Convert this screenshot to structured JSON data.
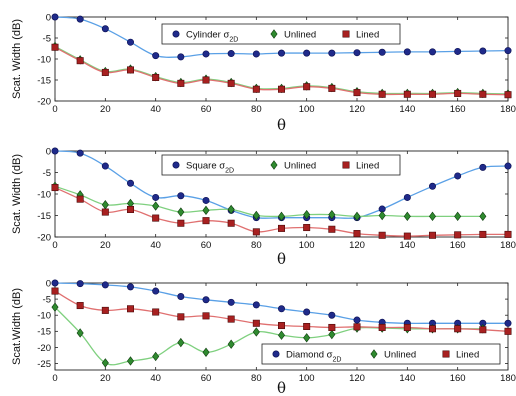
{
  "chart_data": [
    {
      "type": "line",
      "xlabel": "θ",
      "ylabel": "Scat. Width (dB)",
      "xlim": [
        0,
        180
      ],
      "ylim": [
        -20,
        0
      ],
      "xticks": [
        0,
        20,
        40,
        60,
        80,
        100,
        120,
        140,
        160,
        180
      ],
      "yticks": [
        0,
        -5,
        -10,
        -15,
        -20
      ],
      "legend_position": "top-center",
      "series": [
        {
          "name": "Cylinder σ2D",
          "legend_main": "Cylinder σ",
          "legend_sub": "2D",
          "color": "#1f2a8a",
          "line_color": "#5aa0e6",
          "marker": "circle",
          "x": [
            0,
            10,
            20,
            30,
            40,
            50,
            60,
            70,
            80,
            90,
            100,
            110,
            120,
            130,
            140,
            150,
            160,
            170,
            180
          ],
          "y": [
            0,
            -0.5,
            -2.8,
            -6.0,
            -9.2,
            -9.5,
            -8.8,
            -8.7,
            -8.8,
            -8.6,
            -8.6,
            -8.6,
            -8.5,
            -8.4,
            -8.3,
            -8.3,
            -8.2,
            -8.1,
            -8.0
          ]
        },
        {
          "name": "Unlined",
          "legend_main": "Unlined",
          "legend_sub": "",
          "color": "#2f8a2f",
          "line_color": "#7fd07f",
          "marker": "diamond",
          "x": [
            0,
            10,
            20,
            30,
            40,
            50,
            60,
            70,
            80,
            90,
            100,
            110,
            120,
            130,
            140,
            150,
            160,
            170,
            180
          ],
          "y": [
            -7.0,
            -10.2,
            -13.0,
            -12.4,
            -14.2,
            -15.6,
            -14.8,
            -15.6,
            -17.0,
            -17.0,
            -16.4,
            -16.8,
            -17.8,
            -18.2,
            -18.2,
            -18.2,
            -18.0,
            -18.2,
            -18.3
          ]
        },
        {
          "name": "Lined",
          "legend_main": "Lined",
          "legend_sub": "",
          "color": "#a82020",
          "line_color": "#e07070",
          "marker": "square",
          "x": [
            0,
            10,
            20,
            30,
            40,
            50,
            60,
            70,
            80,
            90,
            100,
            110,
            120,
            130,
            140,
            150,
            160,
            170,
            180
          ],
          "y": [
            -7.2,
            -10.4,
            -13.2,
            -12.6,
            -14.4,
            -15.8,
            -15.0,
            -15.8,
            -17.2,
            -17.2,
            -16.6,
            -17.0,
            -18.0,
            -18.4,
            -18.4,
            -18.4,
            -18.2,
            -18.4,
            -18.5
          ]
        }
      ]
    },
    {
      "type": "line",
      "xlabel": "θ",
      "ylabel": "Scat. Width (dB)",
      "xlim": [
        0,
        180
      ],
      "ylim": [
        -20,
        0
      ],
      "xticks": [
        0,
        20,
        40,
        60,
        80,
        100,
        120,
        140,
        160,
        180
      ],
      "yticks": [
        0,
        -5,
        -10,
        -15,
        -20
      ],
      "legend_position": "top-center",
      "series": [
        {
          "name": "Square σ2D",
          "legend_main": "Square σ",
          "legend_sub": "2D",
          "color": "#1f2a8a",
          "line_color": "#5aa0e6",
          "marker": "circle",
          "x": [
            0,
            10,
            20,
            30,
            40,
            50,
            60,
            70,
            80,
            90,
            100,
            110,
            120,
            130,
            140,
            150,
            160,
            170,
            180
          ],
          "y": [
            0,
            -0.5,
            -3.5,
            -7.5,
            -10.8,
            -10.4,
            -11.5,
            -13.8,
            -15.5,
            -15.5,
            -15.5,
            -15.5,
            -15.5,
            -13.5,
            -10.8,
            -8.2,
            -5.8,
            -3.8,
            -3.5
          ]
        },
        {
          "name": "Unlined",
          "legend_main": "Unlined",
          "legend_sub": "",
          "color": "#2f8a2f",
          "line_color": "#7fd07f",
          "marker": "diamond",
          "x": [
            0,
            10,
            20,
            30,
            40,
            50,
            60,
            70,
            80,
            90,
            100,
            110,
            120,
            130,
            140,
            150,
            160,
            170
          ],
          "y": [
            -8.2,
            -10.2,
            -12.5,
            -12.2,
            -12.8,
            -14.2,
            -13.8,
            -13.6,
            -15.0,
            -15.2,
            -14.8,
            -14.8,
            -15.2,
            -15.0,
            -15.2,
            -15.2,
            -15.2,
            -15.2
          ]
        },
        {
          "name": "Lined",
          "legend_main": "Lined",
          "legend_sub": "",
          "color": "#a82020",
          "line_color": "#e07070",
          "marker": "square",
          "x": [
            0,
            10,
            20,
            30,
            40,
            50,
            60,
            70,
            80,
            90,
            100,
            110,
            120,
            130,
            140,
            150,
            160,
            170,
            180
          ],
          "y": [
            -8.5,
            -11.2,
            -14.2,
            -13.6,
            -15.6,
            -16.8,
            -16.2,
            -16.8,
            -18.8,
            -18.0,
            -17.8,
            -18.2,
            -19.2,
            -19.6,
            -19.8,
            -19.6,
            -19.5,
            -19.4,
            -19.4
          ]
        }
      ]
    },
    {
      "type": "line",
      "xlabel": "θ",
      "ylabel": "Scat.Width (dB)",
      "xlim": [
        0,
        180
      ],
      "ylim": [
        -27,
        0
      ],
      "xticks": [
        0,
        20,
        40,
        60,
        80,
        100,
        120,
        140,
        160,
        180
      ],
      "yticks": [
        0,
        -5,
        -10,
        -15,
        -20,
        -25
      ],
      "legend_position": "bottom-right",
      "series": [
        {
          "name": "Diamond σ2D",
          "legend_main": "Diamond σ",
          "legend_sub": "2D",
          "color": "#1f2a8a",
          "line_color": "#5aa0e6",
          "marker": "circle",
          "x": [
            0,
            10,
            20,
            30,
            40,
            50,
            60,
            70,
            80,
            90,
            100,
            110,
            120,
            130,
            140,
            150,
            160,
            170,
            180
          ],
          "y": [
            0,
            -0.2,
            -0.6,
            -1.2,
            -2.5,
            -4.2,
            -5.2,
            -6.0,
            -6.8,
            -8.0,
            -9.0,
            -10.0,
            -11.5,
            -12.2,
            -12.5,
            -12.5,
            -12.5,
            -12.5,
            -12.5
          ]
        },
        {
          "name": "Unlined",
          "legend_main": "Unlined",
          "legend_sub": "",
          "color": "#2f8a2f",
          "line_color": "#7fd07f",
          "marker": "diamond",
          "x": [
            0,
            10,
            20,
            30,
            40,
            50,
            60,
            70,
            80,
            90,
            100,
            110,
            120,
            130,
            140,
            150,
            160,
            170
          ],
          "y": [
            -7.5,
            -15.5,
            -24.8,
            -24.2,
            -22.8,
            -18.5,
            -21.5,
            -19.0,
            -15.2,
            -16.2,
            -17.0,
            -16.0,
            -14.0,
            -14.0,
            -14.2,
            -14.2,
            -14.2,
            -14.2
          ]
        },
        {
          "name": "Lined",
          "legend_main": "Lined",
          "legend_sub": "",
          "color": "#a82020",
          "line_color": "#e07070",
          "marker": "square",
          "x": [
            0,
            10,
            20,
            30,
            40,
            50,
            60,
            70,
            80,
            90,
            100,
            110,
            120,
            130,
            140,
            150,
            160,
            170,
            180
          ],
          "y": [
            -2.5,
            -7.0,
            -8.5,
            -8.0,
            -9.0,
            -10.5,
            -10.2,
            -11.2,
            -12.5,
            -13.2,
            -13.5,
            -13.8,
            -13.6,
            -13.8,
            -13.8,
            -14.2,
            -14.2,
            -14.5,
            -15.0
          ]
        }
      ]
    }
  ]
}
